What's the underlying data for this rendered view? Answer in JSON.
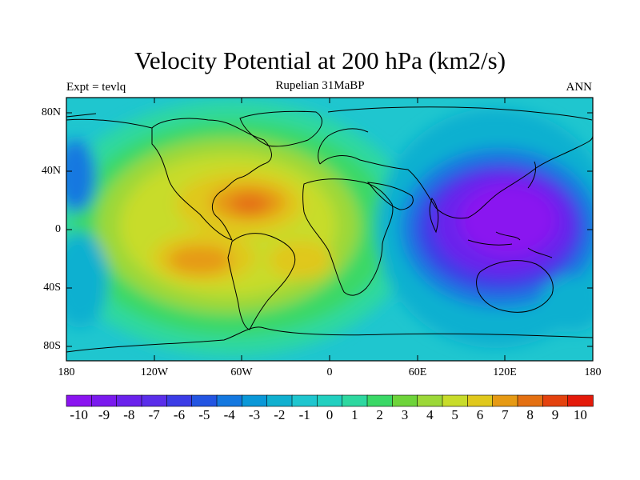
{
  "map": {
    "title": "Velocity Potential at 200 hPa (km2/s)",
    "subtitle_left": "Expt = tevlq",
    "subtitle_center": "Rupelian  31MaBP",
    "subtitle_right": "ANN",
    "lat_labels": [
      "80N",
      "40N",
      "0",
      "40S",
      "80S"
    ],
    "lon_labels": [
      "180",
      "120W",
      "60W",
      "0",
      "60E",
      "120E",
      "180"
    ],
    "field": "Velocity potential",
    "level": "200 hPa",
    "units": "km2/s"
  },
  "colorbar": {
    "labels": [
      "-10",
      "-9",
      "-8",
      "-7",
      "-6",
      "-5",
      "-4",
      "-3",
      "-2",
      "-1",
      "0",
      "1",
      "2",
      "3",
      "4",
      "5",
      "6",
      "7",
      "8",
      "9",
      "10"
    ],
    "colors": [
      "#8a14f0",
      "#7a1aee",
      "#6a22ec",
      "#5a2eea",
      "#3b3ce6",
      "#2355e2",
      "#1478e0",
      "#0a98d8",
      "#10b0d0",
      "#1fc6cf",
      "#22d0c0",
      "#2ed8a0",
      "#3ad866",
      "#6ed43a",
      "#9cd838",
      "#c8dc2a",
      "#e0c81c",
      "#e69a14",
      "#e47012",
      "#e4420e",
      "#e41a0a"
    ]
  }
}
